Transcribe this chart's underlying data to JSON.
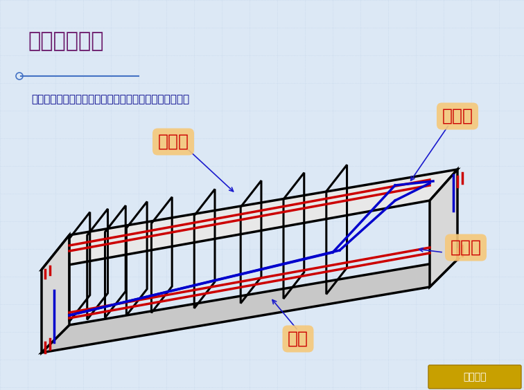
{
  "title": "钢筋混凝土梁",
  "subtitle": "钢筋混凝土梁一般采用立面图和断面图表示钢筋配置情况",
  "bg_color": "#dce8f5",
  "grid_color": "#b8cce4",
  "title_color": "#6b1a6b",
  "subtitle_color": "#00008b",
  "label_bg": "#f5c87a",
  "label_text_color": "#cc0000",
  "labels": {
    "jiaji": "架立筋",
    "wanqi": "弯起筋",
    "shouli": "受力筋",
    "gu": "箍筋"
  },
  "beam_color": "#000000",
  "red_bar_color": "#cc0000",
  "blue_bar_color": "#0000cc",
  "footer_color": "#c8a000",
  "footer_text": "返回目录"
}
